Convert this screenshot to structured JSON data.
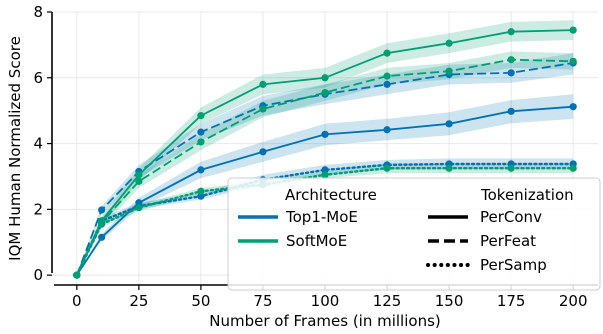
{
  "chart_data": {
    "type": "line",
    "xlabel": "Number of Frames (in millions)",
    "ylabel": "IQM Human Normalized Score",
    "x": [
      0,
      10,
      25,
      50,
      75,
      100,
      125,
      150,
      175,
      200
    ],
    "xticks": [
      0,
      25,
      50,
      75,
      100,
      125,
      150,
      175,
      200
    ],
    "yticks": [
      0,
      2,
      4,
      6,
      8
    ],
    "xlim": [
      -10,
      210
    ],
    "ylim": [
      -0.3,
      8
    ],
    "grid": true,
    "colors": {
      "top1_moe": "#0072b2",
      "softmoe": "#009e73"
    },
    "series": [
      {
        "architecture": "Top1-MoE",
        "tokenization": "PerConv",
        "color_key": "top1_moe",
        "dash": "solid",
        "values": [
          0.0,
          1.15,
          2.2,
          3.2,
          3.75,
          4.28,
          4.42,
          4.6,
          4.98,
          5.12
        ],
        "lower": [
          0.0,
          1.05,
          2.05,
          2.95,
          3.45,
          3.95,
          4.1,
          4.25,
          4.62,
          4.75
        ],
        "upper": [
          0.0,
          1.25,
          2.35,
          3.45,
          4.05,
          4.6,
          4.75,
          4.95,
          5.32,
          5.5
        ]
      },
      {
        "architecture": "Top1-MoE",
        "tokenization": "PerFeat",
        "color_key": "top1_moe",
        "dash": "dashed",
        "values": [
          0.0,
          1.98,
          3.15,
          4.35,
          5.15,
          5.5,
          5.8,
          6.1,
          6.15,
          6.45
        ],
        "lower": [
          0.0,
          1.85,
          2.95,
          4.1,
          4.85,
          5.2,
          5.5,
          5.8,
          5.85,
          6.1
        ],
        "upper": [
          0.0,
          2.1,
          3.35,
          4.6,
          5.45,
          5.8,
          6.1,
          6.4,
          6.45,
          6.75
        ]
      },
      {
        "architecture": "Top1-MoE",
        "tokenization": "PerSamp",
        "color_key": "top1_moe",
        "dash": "dotted",
        "values": [
          0.0,
          1.65,
          2.1,
          2.4,
          2.9,
          3.2,
          3.35,
          3.38,
          3.38,
          3.38
        ],
        "lower": [
          0.0,
          1.55,
          2.0,
          2.3,
          2.75,
          3.05,
          3.2,
          3.22,
          3.22,
          3.22
        ],
        "upper": [
          0.0,
          1.75,
          2.2,
          2.5,
          3.05,
          3.35,
          3.5,
          3.55,
          3.55,
          3.55
        ]
      },
      {
        "architecture": "SoftMoE",
        "tokenization": "PerConv",
        "color_key": "softmoe",
        "dash": "solid",
        "values": [
          0.0,
          1.65,
          3.05,
          4.85,
          5.8,
          6.0,
          6.75,
          7.05,
          7.4,
          7.45
        ],
        "lower": [
          0.0,
          1.5,
          2.85,
          4.6,
          5.5,
          5.7,
          6.45,
          6.75,
          7.1,
          7.15
        ],
        "upper": [
          0.0,
          1.8,
          3.25,
          5.1,
          6.1,
          6.3,
          7.05,
          7.35,
          7.7,
          7.75
        ]
      },
      {
        "architecture": "SoftMoE",
        "tokenization": "PerFeat",
        "color_key": "softmoe",
        "dash": "dashed",
        "values": [
          0.0,
          1.6,
          2.85,
          4.05,
          5.05,
          5.55,
          6.05,
          6.2,
          6.55,
          6.5
        ],
        "lower": [
          0.0,
          1.45,
          2.65,
          3.8,
          4.8,
          5.3,
          5.8,
          5.95,
          6.3,
          6.25
        ],
        "upper": [
          0.0,
          1.75,
          3.05,
          4.3,
          5.3,
          5.8,
          6.3,
          6.45,
          6.8,
          6.75
        ]
      },
      {
        "architecture": "SoftMoE",
        "tokenization": "PerSamp",
        "color_key": "softmoe",
        "dash": "dotted",
        "values": [
          0.0,
          1.55,
          2.05,
          2.55,
          2.75,
          3.05,
          3.25,
          3.25,
          3.25,
          3.25
        ],
        "lower": [
          0.0,
          1.45,
          1.95,
          2.45,
          2.65,
          2.95,
          3.1,
          3.1,
          3.1,
          3.1
        ],
        "upper": [
          0.0,
          1.65,
          2.15,
          2.65,
          2.85,
          3.15,
          3.4,
          3.4,
          3.4,
          3.4
        ]
      }
    ],
    "legend": {
      "placement": "lower-right",
      "architecture_title": "Architecture",
      "tokenization_title": "Tokenization",
      "architectures": [
        {
          "label": "Top1-MoE",
          "color_key": "top1_moe"
        },
        {
          "label": "SoftMoE",
          "color_key": "softmoe"
        }
      ],
      "tokenizations": [
        {
          "label": "PerConv",
          "dash": "solid"
        },
        {
          "label": "PerFeat",
          "dash": "dashed"
        },
        {
          "label": "PerSamp",
          "dash": "dotted"
        }
      ]
    }
  }
}
